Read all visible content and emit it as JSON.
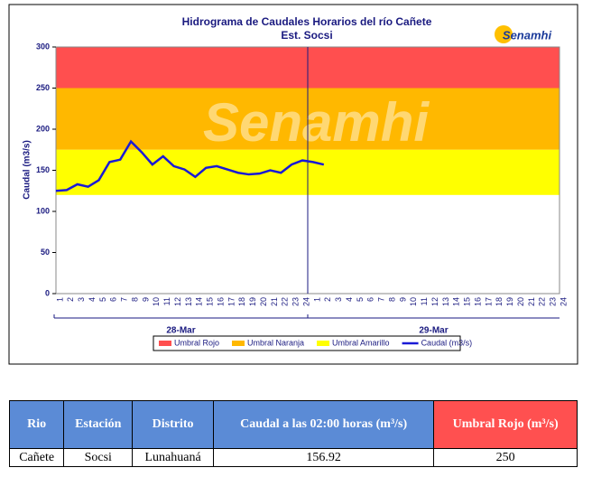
{
  "chart_data": {
    "type": "line",
    "title": "Hidrograma de Caudales Horarios del río Cañete",
    "subtitle": "Est. Socsi",
    "logo": "Senamhi",
    "y_label": "Caudal  (m3/s)",
    "categories": [
      "1",
      "2",
      "3",
      "4",
      "5",
      "6",
      "7",
      "8",
      "9",
      "10",
      "11",
      "12",
      "13",
      "14",
      "15",
      "16",
      "17",
      "18",
      "19",
      "20",
      "21",
      "22",
      "23",
      "24",
      "1",
      "2",
      "3",
      "4",
      "5",
      "6",
      "7",
      "8",
      "9",
      "10",
      "11",
      "12",
      "13",
      "14",
      "15",
      "16",
      "17",
      "18",
      "19",
      "20",
      "21",
      "22",
      "23",
      "24"
    ],
    "day_labels": [
      "28-Mar",
      "29-Mar"
    ],
    "ylim": [
      0,
      300
    ],
    "yticks": [
      0,
      50,
      100,
      150,
      200,
      250,
      300
    ],
    "bands": [
      {
        "name": "Umbral Rojo",
        "color": "#ff4f4f",
        "range": [
          250,
          300
        ]
      },
      {
        "name": "Umbral Naranja",
        "color": "#ffb800",
        "range": [
          175,
          250
        ]
      },
      {
        "name": "Umbral Amarillo",
        "color": "#ffff00",
        "range": [
          120,
          175
        ]
      }
    ],
    "series": [
      {
        "name": "Caudal (m3/s)",
        "color": "#1a1ad6",
        "values": [
          125,
          126,
          133,
          130,
          138,
          160,
          163,
          185,
          172,
          157,
          167,
          155,
          151,
          142,
          153,
          155,
          151,
          147,
          145,
          146,
          150,
          147,
          157,
          162,
          160,
          156.92,
          null,
          null,
          null,
          null,
          null,
          null,
          null,
          null,
          null,
          null,
          null,
          null,
          null,
          null,
          null,
          null,
          null,
          null,
          null,
          null,
          null,
          null
        ]
      }
    ]
  },
  "table": {
    "headers": [
      "Rio",
      "Estación",
      "Distrito",
      "Caudal a las 02:00 horas (m³/s)",
      "Umbral Rojo (m³/s)"
    ],
    "rows": [
      [
        "Cañete",
        "Socsi",
        "Lunahuaná",
        "156.92",
        "250"
      ]
    ]
  }
}
